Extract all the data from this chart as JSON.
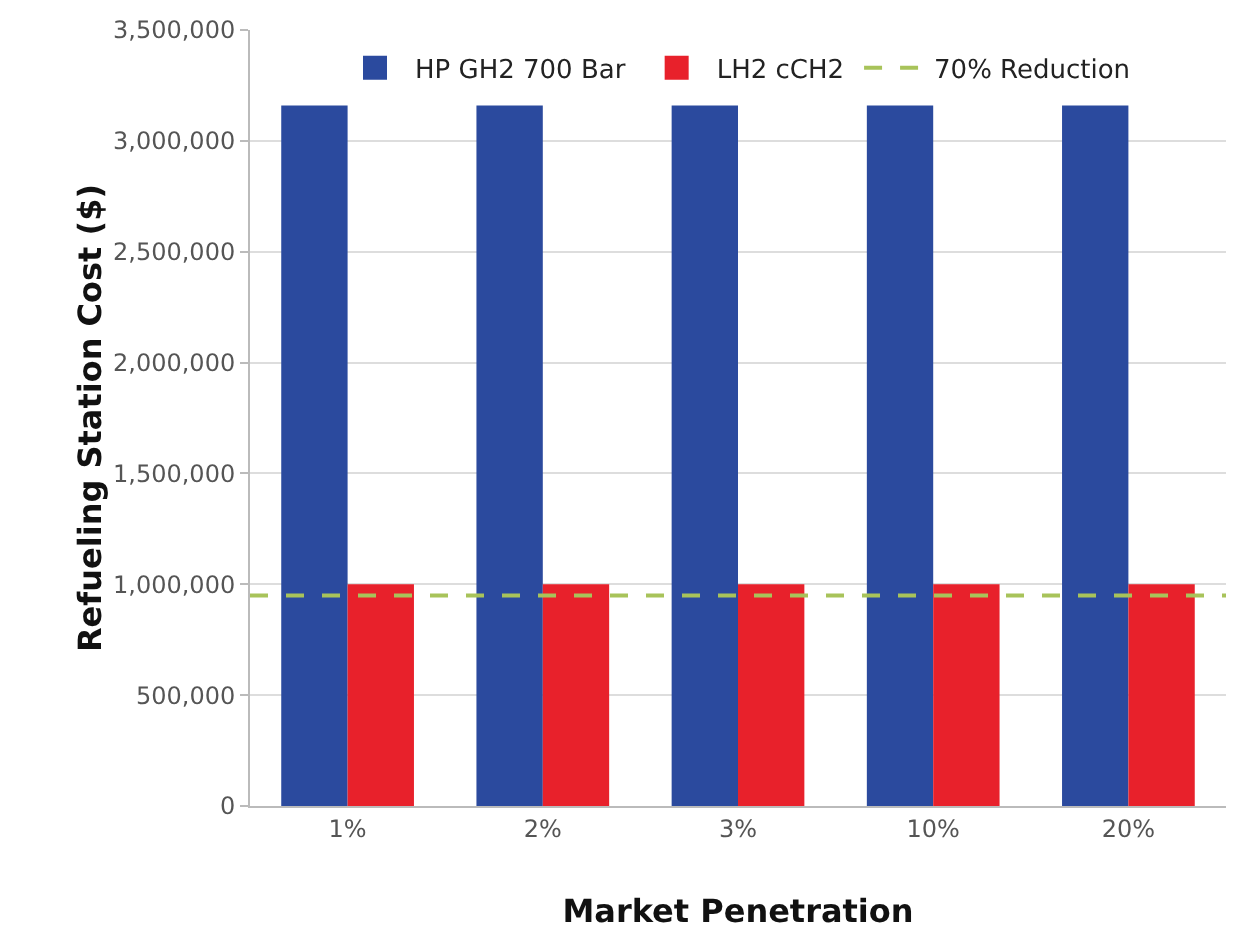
{
  "chart_data": {
    "type": "bar",
    "xlabel": "Market Penetration",
    "ylabel": "Refueling Station Cost ($)",
    "categories": [
      "1%",
      "2%",
      "3%",
      "10%",
      "20%"
    ],
    "series": [
      {
        "name": "HP GH2 700 Bar",
        "color": "#2b4a9e",
        "values": [
          3160000,
          3160000,
          3160000,
          3160000,
          3160000
        ]
      },
      {
        "name": "LH2 cCH2",
        "color": "#e8212b",
        "values": [
          1000000,
          1000000,
          1000000,
          1000000,
          1000000
        ]
      }
    ],
    "ref_lines": [
      {
        "axis": "y",
        "value": 950000,
        "label": "70% Reduction",
        "color": "#a8c35a",
        "line_style": "dashed"
      }
    ],
    "ylim": [
      0,
      3500000
    ],
    "yticks": [
      {
        "value": 0,
        "label": "0"
      },
      {
        "value": 500000,
        "label": "500,000"
      },
      {
        "value": 1000000,
        "label": "1,000,000"
      },
      {
        "value": 1500000,
        "label": "1,500,000"
      },
      {
        "value": 2000000,
        "label": "2,000,000"
      },
      {
        "value": 2500000,
        "label": "2,500,000"
      },
      {
        "value": 3000000,
        "label": "3,000,000"
      },
      {
        "value": 3500000,
        "label": "3,500,000"
      }
    ],
    "grid": "y",
    "legend": "top"
  }
}
